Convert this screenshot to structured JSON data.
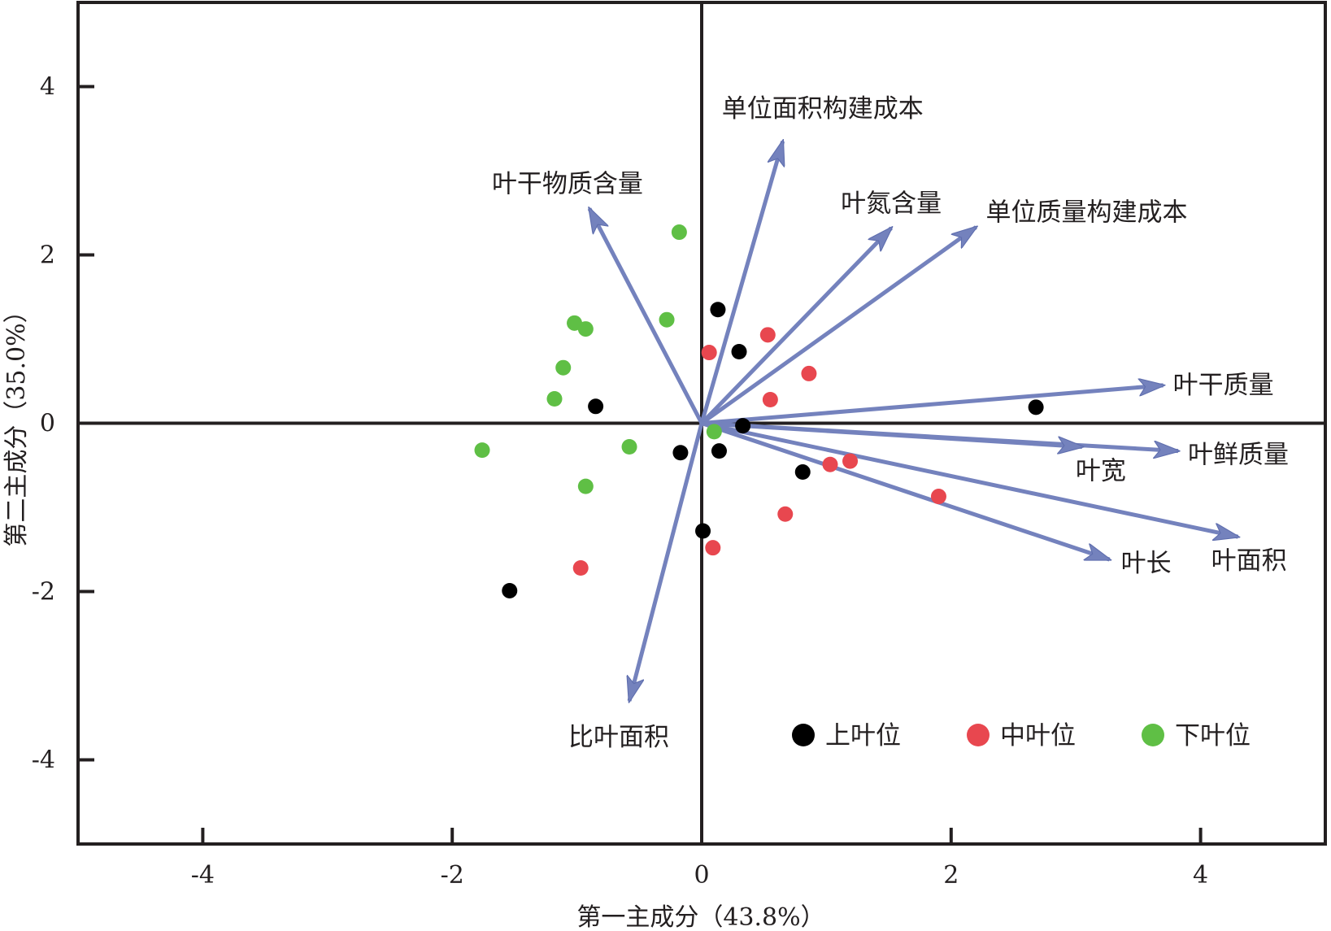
{
  "chart_data": {
    "type": "scatter",
    "subtype": "pca-biplot",
    "title": "",
    "xlabel": "第一主成分（43.8%）",
    "ylabel": "第二主成分（35.0%）",
    "xlim": [
      -5,
      5
    ],
    "ylim": [
      -5,
      5
    ],
    "xticks": [
      -4,
      -2,
      0,
      2,
      4
    ],
    "yticks": [
      -4,
      -2,
      0,
      2,
      4
    ],
    "xtick_labels": [
      "-4",
      "-2",
      "0",
      "2",
      "4"
    ],
    "ytick_labels": [
      "-4",
      "-2",
      "0",
      "2",
      "4"
    ],
    "grid": false,
    "zero_lines": true,
    "legend_position": "bottom-right",
    "vector_color": "#7482bd",
    "vectors": [
      {
        "label": "单位面积构建成本",
        "x": 0.65,
        "y": 3.35
      },
      {
        "label": "叶干物质含量",
        "x": -0.9,
        "y": 2.55
      },
      {
        "label": "叶氮含量",
        "x": 1.52,
        "y": 2.32
      },
      {
        "label": "单位质量构建成本",
        "x": 2.2,
        "y": 2.33
      },
      {
        "label": "叶干质量",
        "x": 3.7,
        "y": 0.45
      },
      {
        "label": "叶鲜质量",
        "x": 3.82,
        "y": -0.33
      },
      {
        "label": "叶宽",
        "x": 3.05,
        "y": -0.28
      },
      {
        "label": "叶面积",
        "x": 4.3,
        "y": -1.35
      },
      {
        "label": "叶长",
        "x": 3.27,
        "y": -1.62
      },
      {
        "label": "比叶面积",
        "x": -0.58,
        "y": -3.3
      }
    ],
    "series": [
      {
        "name": "上叶位",
        "color": "#000000",
        "points": [
          {
            "x": 0.13,
            "y": 1.35
          },
          {
            "x": 0.3,
            "y": 0.85
          },
          {
            "x": -0.85,
            "y": 0.2
          },
          {
            "x": 2.68,
            "y": 0.19
          },
          {
            "x": 0.33,
            "y": -0.03
          },
          {
            "x": -0.17,
            "y": -0.35
          },
          {
            "x": 0.14,
            "y": -0.33
          },
          {
            "x": 0.81,
            "y": -0.58
          },
          {
            "x": 0.01,
            "y": -1.28
          },
          {
            "x": -1.54,
            "y": -1.99
          }
        ]
      },
      {
        "name": "中叶位",
        "color": "#e8474f",
        "points": [
          {
            "x": 0.53,
            "y": 1.05
          },
          {
            "x": 0.06,
            "y": 0.84
          },
          {
            "x": 0.86,
            "y": 0.59
          },
          {
            "x": 0.55,
            "y": 0.28
          },
          {
            "x": 1.03,
            "y": -0.49
          },
          {
            "x": 1.19,
            "y": -0.45
          },
          {
            "x": 1.9,
            "y": -0.87
          },
          {
            "x": 0.67,
            "y": -1.08
          },
          {
            "x": 0.09,
            "y": -1.48
          },
          {
            "x": -0.97,
            "y": -1.72
          }
        ]
      },
      {
        "name": "下叶位",
        "color": "#5fbf45",
        "points": [
          {
            "x": -0.18,
            "y": 2.27
          },
          {
            "x": -0.28,
            "y": 1.23
          },
          {
            "x": -1.02,
            "y": 1.19
          },
          {
            "x": -0.93,
            "y": 1.12
          },
          {
            "x": -1.11,
            "y": 0.66
          },
          {
            "x": -1.18,
            "y": 0.29
          },
          {
            "x": -1.76,
            "y": -0.32
          },
          {
            "x": -0.58,
            "y": -0.28
          },
          {
            "x": -0.93,
            "y": -0.75
          },
          {
            "x": 0.1,
            "y": -0.1
          }
        ]
      }
    ]
  }
}
